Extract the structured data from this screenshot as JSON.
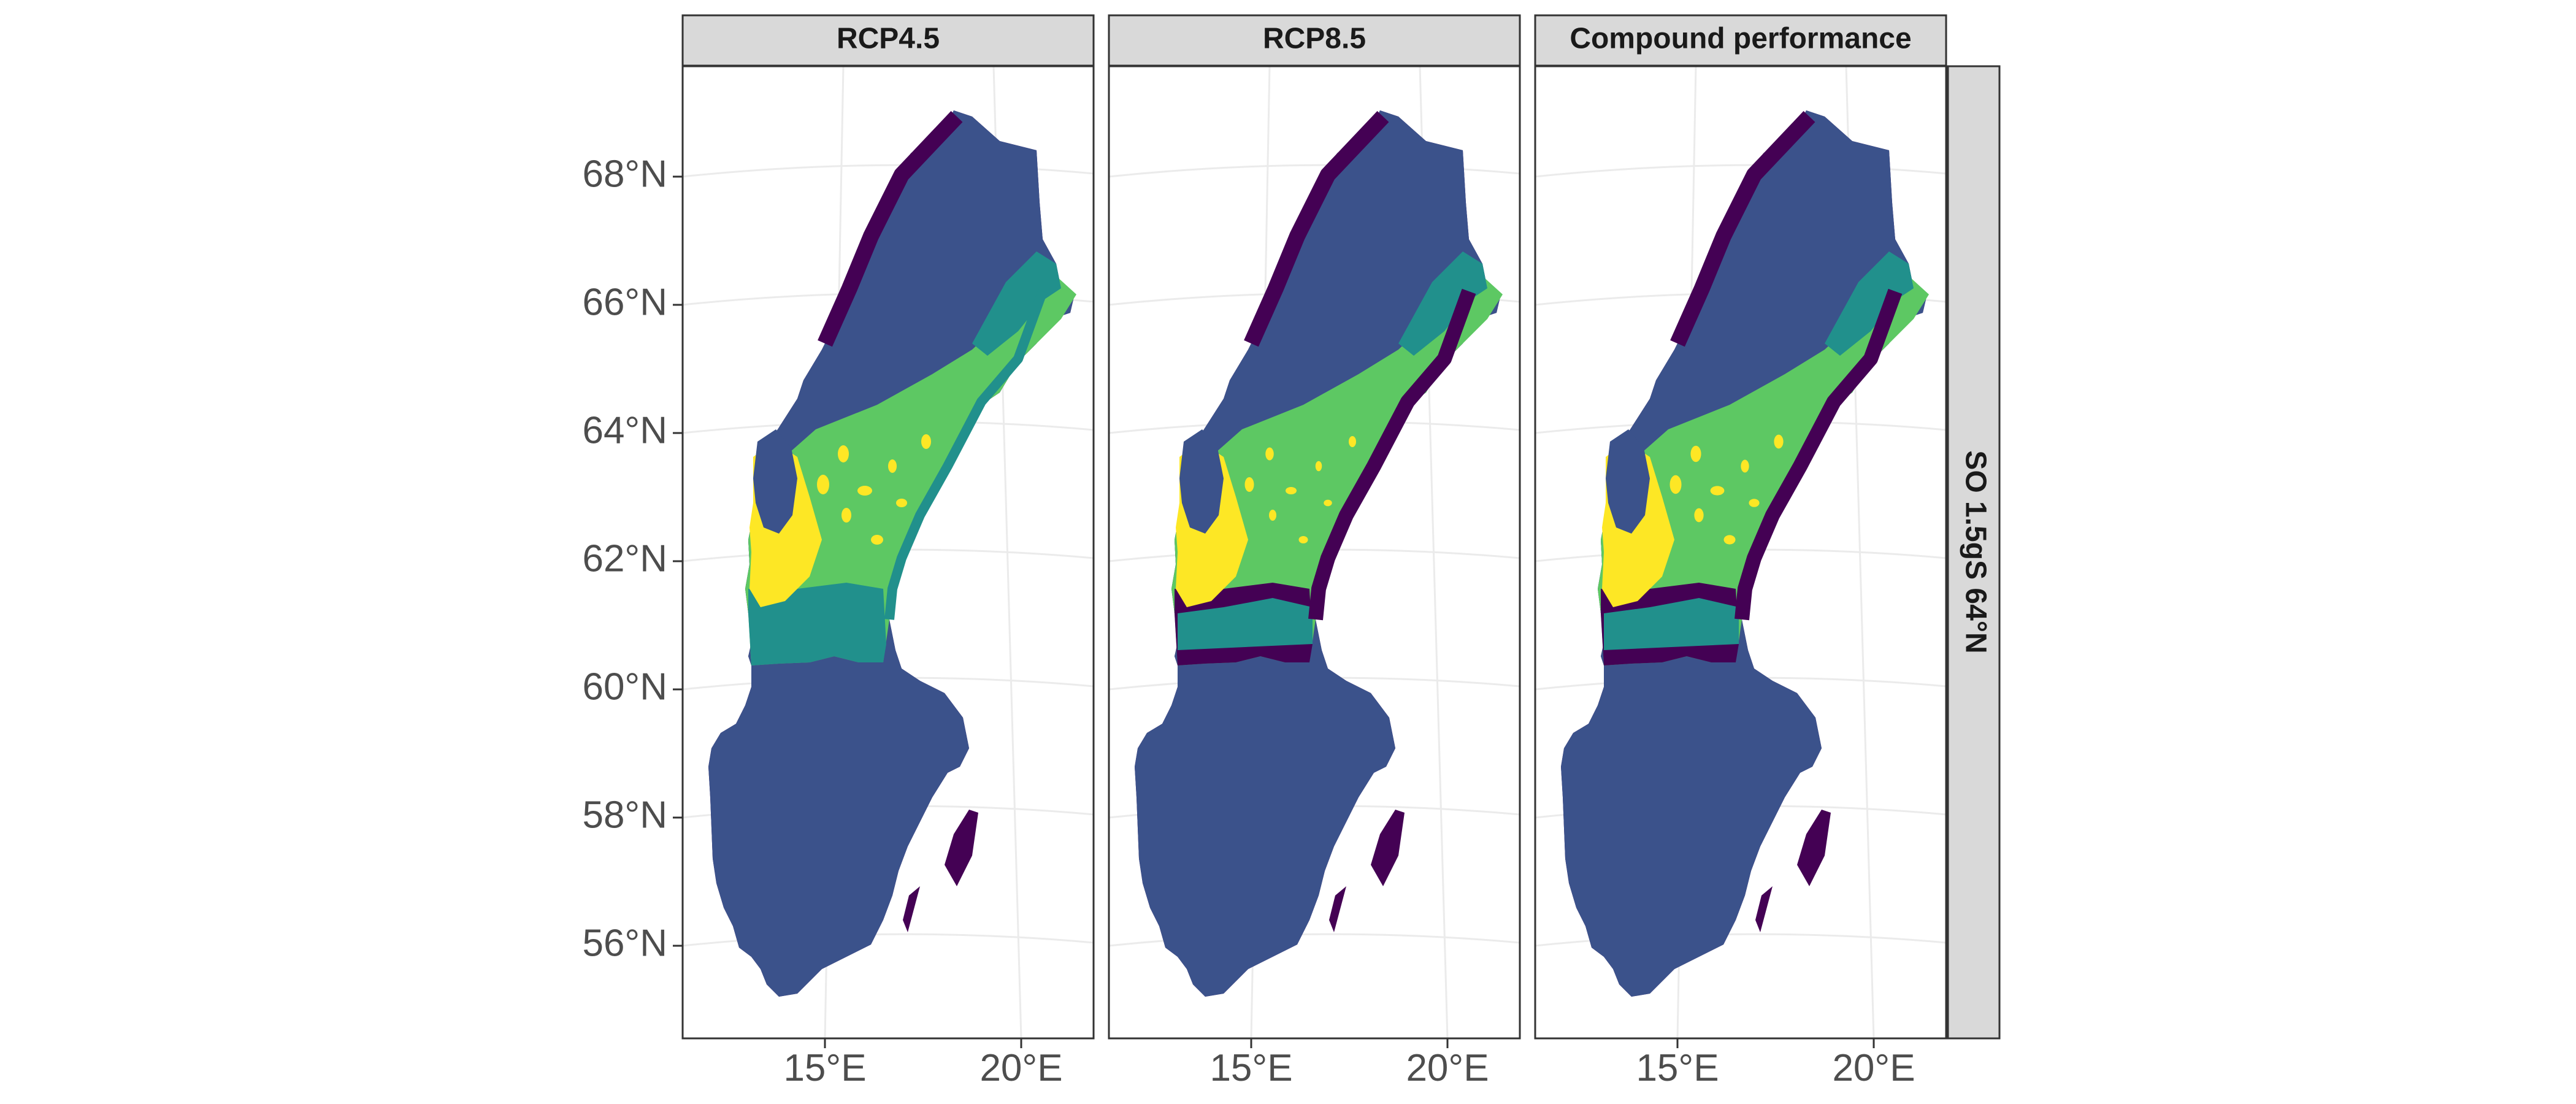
{
  "panels": [
    {
      "title": "RCP4.5",
      "variant": 0
    },
    {
      "title": "RCP8.5",
      "variant": 1
    },
    {
      "title": "Compound performance",
      "variant": 2
    }
  ],
  "row_strip": "SO 1.5gS 64°N",
  "y_ticks": [
    "68°N",
    "66°N",
    "64°N",
    "62°N",
    "60°N",
    "58°N",
    "56°N"
  ],
  "x_ticks": [
    "15°E",
    "20°E"
  ],
  "colors": {
    "strip_fill": "#d9d9d9",
    "panel_border": "#333333",
    "graticule": "#ebebeb",
    "class_1": "#440154",
    "class_2": "#3b528b",
    "class_3": "#21908c",
    "class_4": "#5dc863",
    "class_5": "#fde725"
  }
}
